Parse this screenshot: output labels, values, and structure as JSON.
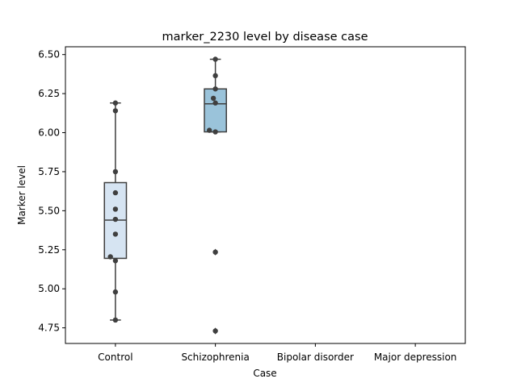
{
  "chart_data": {
    "type": "box",
    "title": "marker_2230 level by disease case",
    "xlabel": "Case",
    "ylabel": "Marker level",
    "categories": [
      "Control",
      "Schizophrenia",
      "Bipolar disorder",
      "Major depression"
    ],
    "ylim": [
      4.65,
      6.55
    ],
    "yticks": [
      4.75,
      5.0,
      5.25,
      5.5,
      5.75,
      6.0,
      6.25,
      6.5
    ],
    "ytick_labels": [
      "4.75",
      "5.00",
      "5.25",
      "5.50",
      "5.75",
      "6.00",
      "6.25",
      "6.50"
    ],
    "grid": false,
    "box_colors": [
      "#d6e4f2",
      "#9ac3da",
      "#5e9ed0",
      "#2b71b1"
    ],
    "boxes": [
      {
        "category": "Control",
        "whisker_low": 4.8,
        "q1": 5.195,
        "median": 5.44,
        "q3": 5.68,
        "whisker_high": 6.19,
        "outliers": []
      },
      {
        "category": "Schizophrenia",
        "whisker_low": 6.005,
        "q1": 6.005,
        "median": 6.185,
        "q3": 6.28,
        "whisker_high": 6.47,
        "outliers": [
          5.235,
          4.73
        ]
      },
      {
        "category": "Bipolar disorder",
        "whisker_low": null,
        "q1": null,
        "median": null,
        "q3": null,
        "whisker_high": null,
        "outliers": []
      },
      {
        "category": "Major depression",
        "whisker_low": null,
        "q1": null,
        "median": null,
        "q3": null,
        "whisker_high": null,
        "outliers": []
      }
    ],
    "points": [
      {
        "category": "Control",
        "jitter": 0,
        "y": 6.19
      },
      {
        "category": "Control",
        "jitter": 0,
        "y": 6.14
      },
      {
        "category": "Control",
        "jitter": 0,
        "y": 5.75
      },
      {
        "category": "Control",
        "jitter": 0,
        "y": 5.615
      },
      {
        "category": "Control",
        "jitter": 0,
        "y": 5.51
      },
      {
        "category": "Control",
        "jitter": 0,
        "y": 5.445
      },
      {
        "category": "Control",
        "jitter": 0,
        "y": 5.35
      },
      {
        "category": "Control",
        "jitter": -0.05,
        "y": 5.205
      },
      {
        "category": "Control",
        "jitter": 0,
        "y": 5.18
      },
      {
        "category": "Control",
        "jitter": 0,
        "y": 4.98
      },
      {
        "category": "Control",
        "jitter": 0,
        "y": 4.8
      },
      {
        "category": "Schizophrenia",
        "jitter": 0,
        "y": 6.47
      },
      {
        "category": "Schizophrenia",
        "jitter": 0,
        "y": 6.365
      },
      {
        "category": "Schizophrenia",
        "jitter": 0,
        "y": 6.28
      },
      {
        "category": "Schizophrenia",
        "jitter": -0.02,
        "y": 6.22
      },
      {
        "category": "Schizophrenia",
        "jitter": 0,
        "y": 6.19
      },
      {
        "category": "Schizophrenia",
        "jitter": -0.06,
        "y": 6.015
      },
      {
        "category": "Schizophrenia",
        "jitter": 0,
        "y": 6.005
      },
      {
        "category": "Schizophrenia",
        "jitter": 0,
        "y": 5.235
      },
      {
        "category": "Schizophrenia",
        "jitter": 0,
        "y": 4.73
      }
    ]
  }
}
